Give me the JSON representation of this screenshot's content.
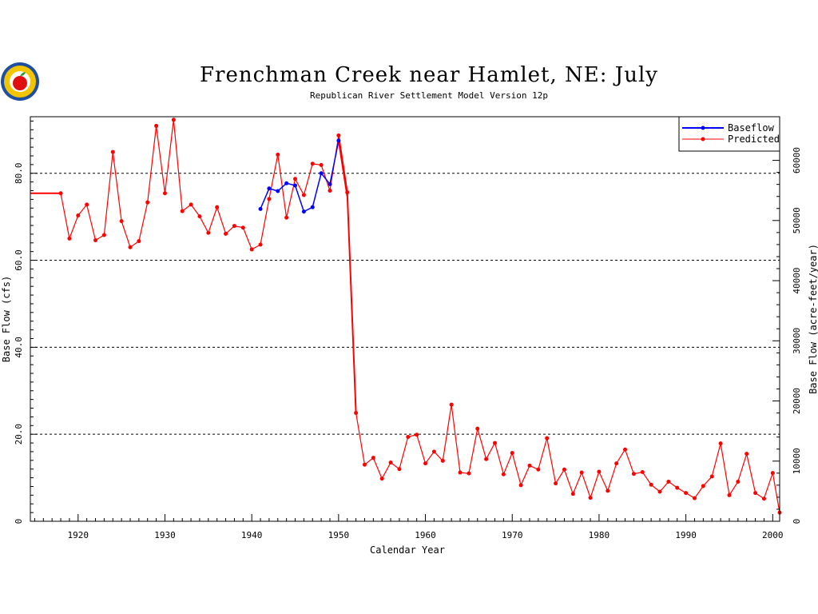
{
  "logo": {
    "icon": "apple-seal-icon"
  },
  "chart_data": {
    "type": "line",
    "title": "Frenchman Creek near Hamlet, NE: July",
    "subtitle": "Republican River Settlement Model Version 12p",
    "xlabel": "Calendar Year",
    "ylabel": "Base Flow (cfs)",
    "y2label": "Base Flow (acre-feet/year)",
    "xlim": [
      1914.5,
      2000.8
    ],
    "ylim": [
      0,
      93
    ],
    "y2lim": [
      0,
      67253
    ],
    "x_ticks": [
      "1920",
      "1930",
      "1940",
      "1950",
      "1960",
      "1970",
      "1980",
      "1990",
      "2000"
    ],
    "y_ticks": [
      "0",
      "20.0",
      "40.0",
      "60.0",
      "80.0"
    ],
    "y2_ticks": [
      "0",
      "10000",
      "20000",
      "30000",
      "40000",
      "50000",
      "60000"
    ],
    "grid": "dashed horizontal at 20, 40, 60, 80",
    "legend_position": "top-right",
    "series": [
      {
        "name": "Baseflow",
        "color": "#0000ff",
        "x": [
          1941,
          1942,
          1943,
          1944,
          1945,
          1946,
          1947,
          1948,
          1949,
          1950
        ],
        "y": [
          71.8,
          76.5,
          75.9,
          77.7,
          77.2,
          71.2,
          72.2,
          80.0,
          77.5,
          87.5
        ],
        "tail": {
          "x": [
            1950,
            1951
          ],
          "y": [
            87.5,
            74.7
          ]
        }
      },
      {
        "name": "Predicted",
        "color": "#ff0000",
        "step": {
          "x": [
            1914.5,
            1918
          ],
          "y": [
            75.4,
            75.4
          ]
        },
        "x": [
          1918,
          1919,
          1920,
          1921,
          1922,
          1923,
          1924,
          1925,
          1926,
          1927,
          1928,
          1929,
          1930,
          1931,
          1932,
          1933,
          1934,
          1935,
          1936,
          1937,
          1938,
          1939,
          1940,
          1941,
          1942,
          1943,
          1944,
          1945,
          1946,
          1947,
          1948,
          1949,
          1950,
          1951,
          1952,
          1953,
          1954,
          1955,
          1956,
          1957,
          1958,
          1959,
          1960,
          1961,
          1962,
          1963,
          1964,
          1965,
          1966,
          1967,
          1968,
          1969,
          1970,
          1971,
          1972,
          1973,
          1974,
          1975,
          1976,
          1977,
          1978,
          1979,
          1980,
          1981,
          1982,
          1983,
          1984,
          1985,
          1986,
          1987,
          1988,
          1989,
          1990,
          1991,
          1992,
          1993,
          1994,
          1995,
          1996,
          1997,
          1998,
          1999,
          2000,
          2000.8
        ],
        "y": [
          75.4,
          65.0,
          70.3,
          72.8,
          64.6,
          65.8,
          84.9,
          69.0,
          63.0,
          64.4,
          73.3,
          90.9,
          75.4,
          92.3,
          71.3,
          72.8,
          70.1,
          66.3,
          72.2,
          66.1,
          67.9,
          67.5,
          62.5,
          63.6,
          74.1,
          84.3,
          69.8,
          78.7,
          75.0,
          82.2,
          81.9,
          76.0,
          88.7,
          75.6,
          24.9,
          13.0,
          14.6,
          9.8,
          13.5,
          12.0,
          19.4,
          19.9,
          13.3,
          16.0,
          13.9,
          26.8,
          11.2,
          11.0,
          21.3,
          14.3,
          18.0,
          10.8,
          15.7,
          8.3,
          12.8,
          11.9,
          19.1,
          8.7,
          11.9,
          6.3,
          11.2,
          5.4,
          11.4,
          7.0,
          13.3,
          16.5,
          10.9,
          11.3,
          8.4,
          6.8,
          9.1,
          7.7,
          6.5,
          5.3,
          8.1,
          10.3,
          17.9,
          6.0,
          9.1,
          15.5,
          6.5,
          5.2,
          11.1,
          2.0
        ]
      }
    ]
  }
}
